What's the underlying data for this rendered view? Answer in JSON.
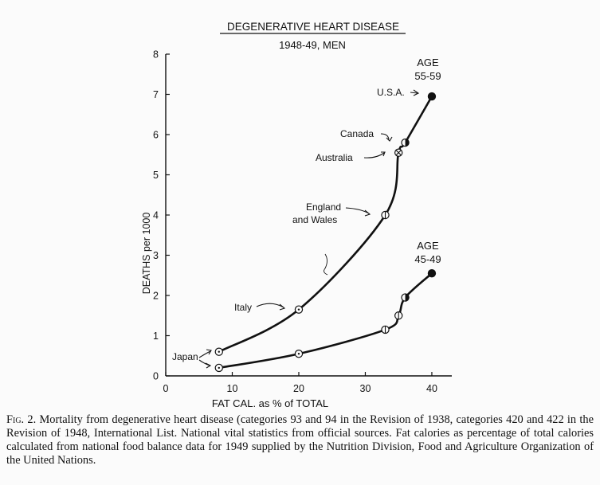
{
  "chart_data": {
    "type": "scatter",
    "title": "DEGENERATIVE HEART DISEASE",
    "subtitle": "1948-49, MEN",
    "xlabel": "FAT CAL. as % of TOTAL",
    "ylabel": "DEATHS per 1000",
    "xlim": [
      0,
      43
    ],
    "ylim": [
      0,
      8
    ],
    "xticks": [
      "0",
      "10",
      "20",
      "30",
      "40"
    ],
    "yticks": [
      "0",
      "1",
      "2",
      "3",
      "4",
      "5",
      "6",
      "7",
      "8"
    ],
    "grid": false,
    "series": [
      {
        "name": "AGE 55-59",
        "label_lines": [
          "AGE",
          "55-59"
        ],
        "points": [
          {
            "country": "Japan",
            "x": 8,
            "y": 0.6,
            "marker": "dot-circle"
          },
          {
            "country": "Italy",
            "x": 20,
            "y": 1.65,
            "marker": "dot-circle"
          },
          {
            "country": "England and Wales",
            "x": 33,
            "y": 4.0,
            "marker": "crossed-circle"
          },
          {
            "country": "Australia",
            "x": 35,
            "y": 5.55,
            "marker": "x-circle"
          },
          {
            "country": "Canada",
            "x": 36,
            "y": 5.8,
            "marker": "half-circle"
          },
          {
            "country": "U.S.A.",
            "x": 40,
            "y": 6.95,
            "marker": "filled-circle"
          }
        ]
      },
      {
        "name": "AGE 45-49",
        "label_lines": [
          "AGE",
          "45-49"
        ],
        "points": [
          {
            "country": "Japan",
            "x": 8,
            "y": 0.2,
            "marker": "dot-circle"
          },
          {
            "country": "Italy",
            "x": 20,
            "y": 0.55,
            "marker": "dot-circle"
          },
          {
            "country": "England and Wales",
            "x": 33,
            "y": 1.15,
            "marker": "crossed-circle"
          },
          {
            "country": "Australia",
            "x": 35,
            "y": 1.5,
            "marker": "crossed-circle"
          },
          {
            "country": "Canada",
            "x": 36,
            "y": 1.95,
            "marker": "half-circle"
          },
          {
            "country": "U.S.A.",
            "x": 40,
            "y": 2.55,
            "marker": "filled-circle"
          }
        ]
      }
    ],
    "annotations": [
      {
        "text": "U.S.A.",
        "series": 0,
        "point": 5
      },
      {
        "text": "Canada",
        "series": 0,
        "point": 4
      },
      {
        "text": "Australia",
        "series": 0,
        "point": 3
      },
      {
        "text": "England",
        "series": 0,
        "point": 2
      },
      {
        "text": "and Wales",
        "series": 0,
        "point": 2
      },
      {
        "text": "Italy",
        "series": 0,
        "point": 1
      },
      {
        "text": "Japan",
        "series": 0,
        "point": 0
      }
    ]
  },
  "caption": {
    "label": "Fig. 2.",
    "text": "Mortality from degenerative heart disease (categories 93 and 94 in the Revision of 1938, categories 420 and 422 in the Revision of 1948, International List. National vital statistics from official sources. Fat calories as percentage of total calories calculated from national food balance data for 1949 supplied by the Nutrition Division, Food and Agriculture Organization of the United Nations."
  }
}
